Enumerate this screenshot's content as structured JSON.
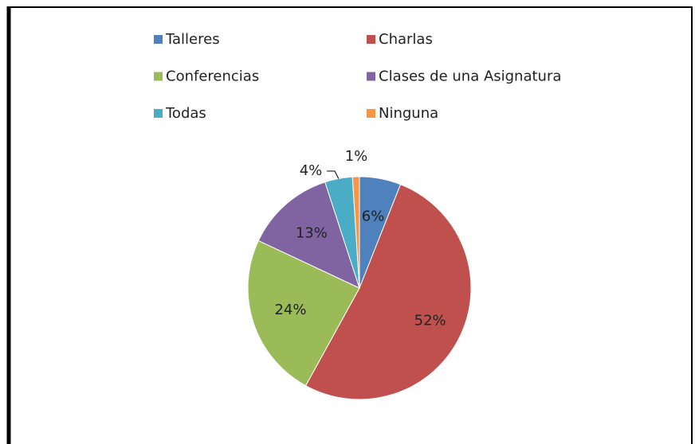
{
  "chart_data": {
    "type": "pie",
    "categories": [
      "Talleres",
      "Charlas",
      "Conferencias",
      "Clases de una Asignatura",
      "Todas",
      "Ninguna"
    ],
    "values": [
      6,
      52,
      24,
      13,
      4,
      1
    ],
    "value_labels": [
      "6%",
      "52%",
      "24%",
      "13%",
      "4%",
      "1%"
    ],
    "colors": [
      "#4f81bd",
      "#c0504d",
      "#9bbb59",
      "#8064a2",
      "#4bacc6",
      "#f79646"
    ],
    "legend": "top"
  }
}
